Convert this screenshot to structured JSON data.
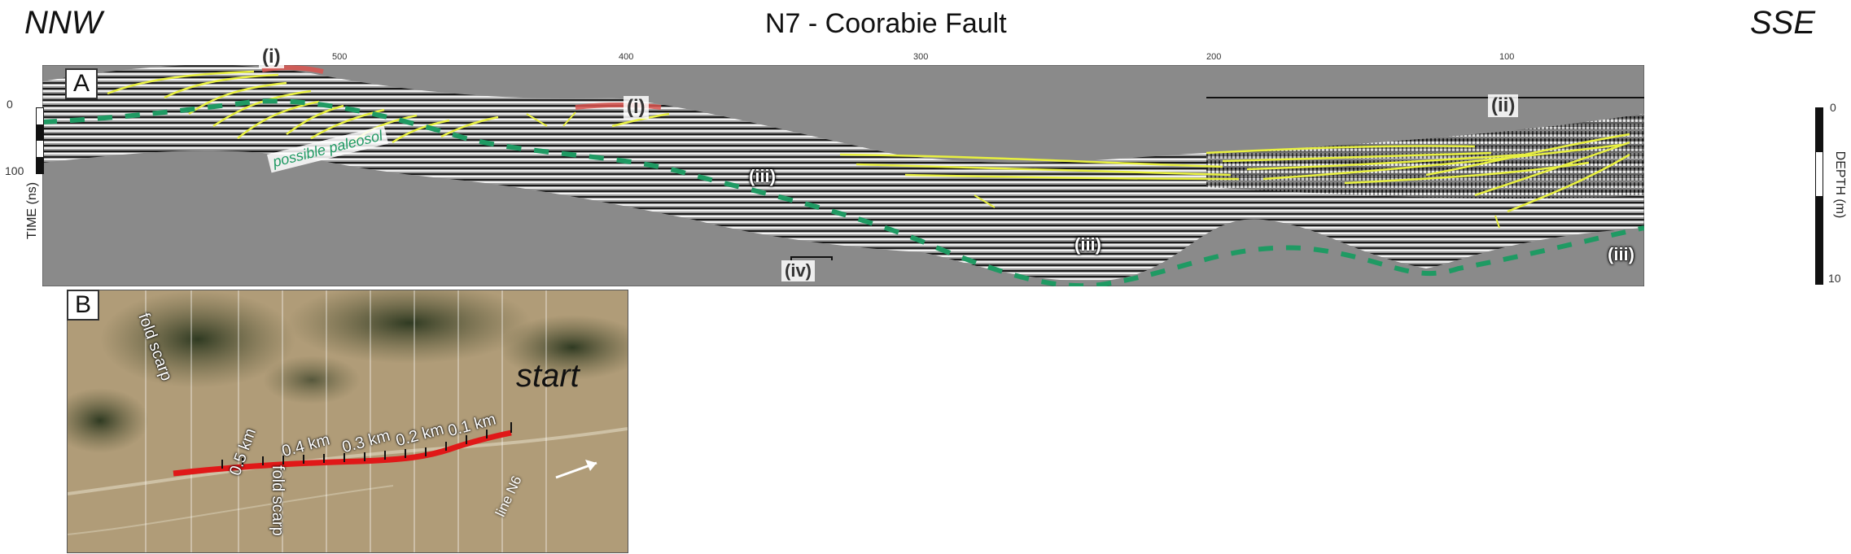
{
  "header": {
    "left_direction": "NNW",
    "title": "N7 - Coorabie Fault",
    "right_direction": "SSE"
  },
  "panel_a": {
    "letter": "A",
    "top_ticks": [
      "500",
      "400",
      "300",
      "200",
      "100"
    ],
    "time_axis": {
      "label": "TIME (ns)",
      "ticks": [
        "0",
        "100"
      ]
    },
    "depth_axis": {
      "label": "DEPTH (m)",
      "ticks": [
        "0",
        "10"
      ]
    },
    "annotations": {
      "i_top": "(i)",
      "i_mid": "(i)",
      "ii": "(ii)",
      "iii_a": "(iii)",
      "iii_b": "(iii)",
      "iii_c": "(iii)",
      "iv": "(iv)",
      "paleosol": "possible paleosol"
    },
    "colors": {
      "section_bg": "#8a8a8a",
      "faults": "#e8f040",
      "paleosol": "#1f9a63",
      "channel": "#d9534f"
    }
  },
  "panel_b": {
    "letter": "B",
    "labels": {
      "fold_scarp_top": "fold scarp",
      "fold_scarp_bottom": "fold scarp",
      "start": "start",
      "line_n6": "line N6",
      "km_05": "0.5 km",
      "km_04": "0.4 km",
      "km_03": "0.3 km",
      "km_02": "0.2 km",
      "km_01": "0.1 km"
    },
    "colors": {
      "survey_line": "#e01818"
    }
  }
}
